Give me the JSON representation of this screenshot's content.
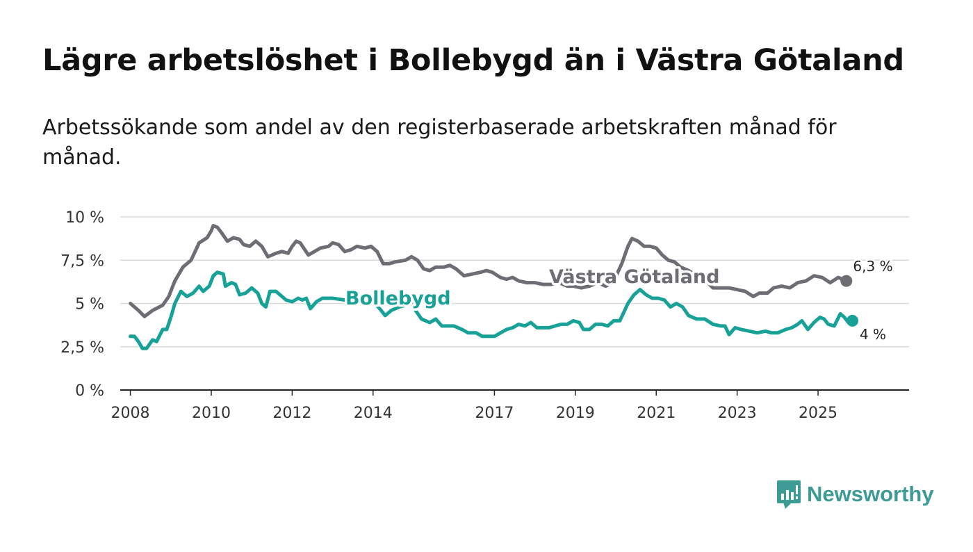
{
  "title": "Lägre arbetslöshet i Bollebygd än i Västra Götaland",
  "subtitle": "Arbetssökande som andel av den registerbaserade arbetskraften månad för månad.",
  "logo_text": "Newsworthy",
  "colors": {
    "bollebygd": "#17a197",
    "vastra": "#6e6d73",
    "grid": "#d9d9d9",
    "axis": "#222222"
  },
  "chart_data": {
    "type": "line",
    "title": "Lägre arbetslöshet i Bollebygd än i Västra Götaland",
    "xlabel": "",
    "ylabel": "",
    "xlim": [
      2007.75,
      2027.25
    ],
    "ylim": [
      0,
      10
    ],
    "yticks": [
      {
        "value": 0,
        "label": "0 %"
      },
      {
        "value": 2.5,
        "label": "2,5 %"
      },
      {
        "value": 5,
        "label": "5 %"
      },
      {
        "value": 7.5,
        "label": "7,5 %"
      },
      {
        "value": 10,
        "label": "10 %"
      }
    ],
    "xticks": [
      {
        "value": 2008,
        "label": "2008"
      },
      {
        "value": 2010,
        "label": "2010"
      },
      {
        "value": 2012,
        "label": "2012"
      },
      {
        "value": 2014,
        "label": "2014"
      },
      {
        "value": 2017,
        "label": "2017"
      },
      {
        "value": 2019,
        "label": "2019"
      },
      {
        "value": 2021,
        "label": "2021"
      },
      {
        "value": 2023,
        "label": "2023"
      },
      {
        "value": 2025,
        "label": "2025"
      }
    ],
    "grid": true,
    "series": [
      {
        "name": "Västra Götaland",
        "label": "Västra Götaland",
        "end_label": "6,3 %",
        "end_value": 6.3,
        "points": [
          [
            2008.0,
            5.0
          ],
          [
            2008.2,
            4.6
          ],
          [
            2008.35,
            4.25
          ],
          [
            2008.55,
            4.6
          ],
          [
            2008.8,
            4.9
          ],
          [
            2008.95,
            5.4
          ],
          [
            2009.1,
            6.3
          ],
          [
            2009.3,
            7.1
          ],
          [
            2009.5,
            7.5
          ],
          [
            2009.7,
            8.5
          ],
          [
            2009.9,
            8.8
          ],
          [
            2010.0,
            9.2
          ],
          [
            2010.05,
            9.5
          ],
          [
            2010.15,
            9.4
          ],
          [
            2010.25,
            9.1
          ],
          [
            2010.4,
            8.6
          ],
          [
            2010.55,
            8.8
          ],
          [
            2010.7,
            8.7
          ],
          [
            2010.8,
            8.4
          ],
          [
            2010.95,
            8.3
          ],
          [
            2011.1,
            8.6
          ],
          [
            2011.25,
            8.3
          ],
          [
            2011.4,
            7.7
          ],
          [
            2011.6,
            7.9
          ],
          [
            2011.75,
            8.0
          ],
          [
            2011.9,
            7.9
          ],
          [
            2012.0,
            8.3
          ],
          [
            2012.1,
            8.6
          ],
          [
            2012.2,
            8.5
          ],
          [
            2012.4,
            7.8
          ],
          [
            2012.55,
            8.0
          ],
          [
            2012.7,
            8.2
          ],
          [
            2012.9,
            8.3
          ],
          [
            2013.0,
            8.5
          ],
          [
            2013.15,
            8.4
          ],
          [
            2013.3,
            8.0
          ],
          [
            2013.45,
            8.1
          ],
          [
            2013.6,
            8.3
          ],
          [
            2013.8,
            8.2
          ],
          [
            2013.95,
            8.3
          ],
          [
            2014.1,
            8.0
          ],
          [
            2014.25,
            7.3
          ],
          [
            2014.4,
            7.3
          ],
          [
            2014.55,
            7.4
          ],
          [
            2014.8,
            7.5
          ],
          [
            2014.95,
            7.7
          ],
          [
            2015.1,
            7.5
          ],
          [
            2015.25,
            7.0
          ],
          [
            2015.4,
            6.9
          ],
          [
            2015.55,
            7.1
          ],
          [
            2015.75,
            7.1
          ],
          [
            2015.9,
            7.2
          ],
          [
            2016.05,
            7.0
          ],
          [
            2016.25,
            6.6
          ],
          [
            2016.45,
            6.7
          ],
          [
            2016.65,
            6.8
          ],
          [
            2016.8,
            6.9
          ],
          [
            2016.95,
            6.8
          ],
          [
            2017.15,
            6.5
          ],
          [
            2017.3,
            6.4
          ],
          [
            2017.45,
            6.5
          ],
          [
            2017.6,
            6.3
          ],
          [
            2017.8,
            6.2
          ],
          [
            2018.0,
            6.2
          ],
          [
            2018.2,
            6.1
          ],
          [
            2018.4,
            6.1
          ],
          [
            2018.6,
            6.2
          ],
          [
            2018.8,
            6.0
          ],
          [
            2018.95,
            6.0
          ],
          [
            2019.15,
            5.9
          ],
          [
            2019.35,
            6.0
          ],
          [
            2019.55,
            6.2
          ],
          [
            2019.75,
            6.0
          ],
          [
            2019.95,
            6.3
          ],
          [
            2020.15,
            7.3
          ],
          [
            2020.3,
            8.3
          ],
          [
            2020.4,
            8.75
          ],
          [
            2020.55,
            8.6
          ],
          [
            2020.7,
            8.3
          ],
          [
            2020.85,
            8.3
          ],
          [
            2021.0,
            8.2
          ],
          [
            2021.15,
            7.8
          ],
          [
            2021.3,
            7.5
          ],
          [
            2021.45,
            7.4
          ],
          [
            2021.6,
            7.1
          ],
          [
            2021.8,
            6.9
          ],
          [
            2022.0,
            6.6
          ],
          [
            2022.2,
            6.4
          ],
          [
            2022.4,
            5.9
          ],
          [
            2022.6,
            5.9
          ],
          [
            2022.8,
            5.9
          ],
          [
            2023.0,
            5.8
          ],
          [
            2023.2,
            5.7
          ],
          [
            2023.4,
            5.4
          ],
          [
            2023.55,
            5.6
          ],
          [
            2023.75,
            5.6
          ],
          [
            2023.9,
            5.9
          ],
          [
            2024.1,
            6.0
          ],
          [
            2024.3,
            5.9
          ],
          [
            2024.5,
            6.2
          ],
          [
            2024.7,
            6.3
          ],
          [
            2024.9,
            6.6
          ],
          [
            2025.1,
            6.5
          ],
          [
            2025.3,
            6.2
          ],
          [
            2025.5,
            6.5
          ],
          [
            2025.7,
            6.3
          ]
        ]
      },
      {
        "name": "Bollebygd",
        "label": "Bollebygd",
        "end_label": "4 %",
        "end_value": 4.0,
        "points": [
          [
            2008.0,
            3.1
          ],
          [
            2008.1,
            3.1
          ],
          [
            2008.2,
            2.8
          ],
          [
            2008.3,
            2.4
          ],
          [
            2008.4,
            2.4
          ],
          [
            2008.55,
            2.9
          ],
          [
            2008.65,
            2.8
          ],
          [
            2008.8,
            3.5
          ],
          [
            2008.9,
            3.5
          ],
          [
            2009.0,
            4.2
          ],
          [
            2009.1,
            5.0
          ],
          [
            2009.25,
            5.7
          ],
          [
            2009.4,
            5.4
          ],
          [
            2009.55,
            5.6
          ],
          [
            2009.7,
            6.0
          ],
          [
            2009.8,
            5.7
          ],
          [
            2009.95,
            6.0
          ],
          [
            2010.05,
            6.6
          ],
          [
            2010.15,
            6.8
          ],
          [
            2010.3,
            6.7
          ],
          [
            2010.35,
            6.0
          ],
          [
            2010.5,
            6.2
          ],
          [
            2010.6,
            6.1
          ],
          [
            2010.7,
            5.5
          ],
          [
            2010.85,
            5.6
          ],
          [
            2011.0,
            5.9
          ],
          [
            2011.15,
            5.6
          ],
          [
            2011.25,
            5.0
          ],
          [
            2011.35,
            4.8
          ],
          [
            2011.45,
            5.7
          ],
          [
            2011.6,
            5.7
          ],
          [
            2011.75,
            5.4
          ],
          [
            2011.85,
            5.2
          ],
          [
            2012.0,
            5.1
          ],
          [
            2012.15,
            5.3
          ],
          [
            2012.25,
            5.2
          ],
          [
            2012.35,
            5.3
          ],
          [
            2012.45,
            4.7
          ],
          [
            2012.6,
            5.1
          ],
          [
            2012.75,
            5.3
          ],
          [
            2013.0,
            5.3
          ],
          [
            2013.3,
            5.2
          ],
          [
            2013.6,
            5.1
          ],
          [
            2013.9,
            5.2
          ],
          [
            2014.05,
            5.0
          ],
          [
            2014.2,
            4.6
          ],
          [
            2014.3,
            4.3
          ],
          [
            2014.45,
            4.6
          ],
          [
            2014.65,
            4.8
          ],
          [
            2014.8,
            4.9
          ],
          [
            2014.95,
            5.0
          ],
          [
            2015.05,
            4.6
          ],
          [
            2015.2,
            4.1
          ],
          [
            2015.3,
            4.0
          ],
          [
            2015.4,
            3.9
          ],
          [
            2015.55,
            4.1
          ],
          [
            2015.7,
            3.7
          ],
          [
            2015.85,
            3.7
          ],
          [
            2016.0,
            3.7
          ],
          [
            2016.2,
            3.5
          ],
          [
            2016.35,
            3.3
          ],
          [
            2016.55,
            3.3
          ],
          [
            2016.7,
            3.1
          ],
          [
            2016.85,
            3.1
          ],
          [
            2017.0,
            3.1
          ],
          [
            2017.15,
            3.3
          ],
          [
            2017.3,
            3.5
          ],
          [
            2017.45,
            3.6
          ],
          [
            2017.6,
            3.8
          ],
          [
            2017.75,
            3.7
          ],
          [
            2017.9,
            3.9
          ],
          [
            2018.05,
            3.6
          ],
          [
            2018.2,
            3.6
          ],
          [
            2018.35,
            3.6
          ],
          [
            2018.5,
            3.7
          ],
          [
            2018.65,
            3.8
          ],
          [
            2018.8,
            3.8
          ],
          [
            2018.95,
            4.0
          ],
          [
            2019.1,
            3.9
          ],
          [
            2019.2,
            3.5
          ],
          [
            2019.35,
            3.5
          ],
          [
            2019.5,
            3.8
          ],
          [
            2019.65,
            3.8
          ],
          [
            2019.8,
            3.7
          ],
          [
            2019.95,
            4.0
          ],
          [
            2020.1,
            4.0
          ],
          [
            2020.2,
            4.5
          ],
          [
            2020.3,
            5.0
          ],
          [
            2020.45,
            5.5
          ],
          [
            2020.6,
            5.8
          ],
          [
            2020.75,
            5.5
          ],
          [
            2020.9,
            5.3
          ],
          [
            2021.05,
            5.3
          ],
          [
            2021.2,
            5.2
          ],
          [
            2021.35,
            4.8
          ],
          [
            2021.5,
            5.0
          ],
          [
            2021.65,
            4.8
          ],
          [
            2021.8,
            4.3
          ],
          [
            2022.0,
            4.1
          ],
          [
            2022.2,
            4.1
          ],
          [
            2022.4,
            3.8
          ],
          [
            2022.6,
            3.7
          ],
          [
            2022.7,
            3.7
          ],
          [
            2022.8,
            3.2
          ],
          [
            2022.95,
            3.6
          ],
          [
            2023.1,
            3.5
          ],
          [
            2023.3,
            3.4
          ],
          [
            2023.5,
            3.3
          ],
          [
            2023.7,
            3.4
          ],
          [
            2023.85,
            3.3
          ],
          [
            2024.0,
            3.3
          ],
          [
            2024.2,
            3.5
          ],
          [
            2024.35,
            3.6
          ],
          [
            2024.5,
            3.8
          ],
          [
            2024.6,
            4.0
          ],
          [
            2024.75,
            3.5
          ],
          [
            2024.9,
            3.9
          ],
          [
            2025.05,
            4.2
          ],
          [
            2025.15,
            4.1
          ],
          [
            2025.25,
            3.8
          ],
          [
            2025.4,
            3.7
          ],
          [
            2025.55,
            4.4
          ],
          [
            2025.65,
            4.2
          ],
          [
            2025.75,
            3.9
          ],
          [
            2025.85,
            4.0
          ]
        ]
      }
    ]
  }
}
